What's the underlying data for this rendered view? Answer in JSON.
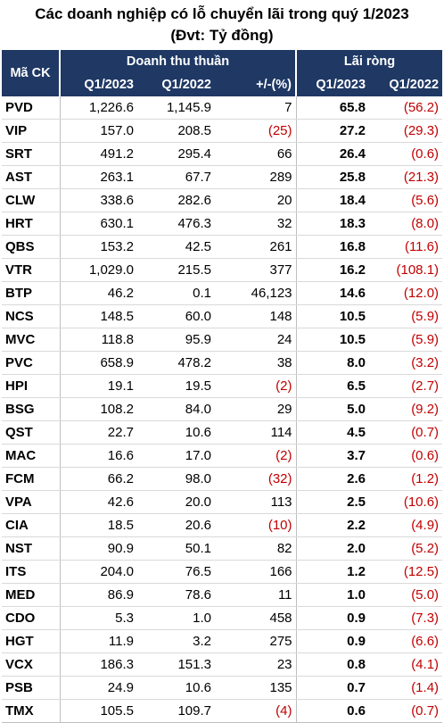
{
  "title": "Các doanh nghiệp có lỗ chuyển lãi trong quý 1/2023",
  "subtitle": "(Đvt: Tỷ đồng)",
  "header": {
    "code": "Mã CK",
    "revenue_group": "Doanh thu thuần",
    "profit_group": "Lãi ròng",
    "rev_q1_2023": "Q1/2023",
    "rev_q1_2022": "Q1/2022",
    "change": "+/-(%)",
    "np_q1_2023": "Q1/2023",
    "np_q1_2022": "Q1/2022"
  },
  "rows": [
    {
      "code": "PVD",
      "r23": "1,226.6",
      "r22": "1,145.9",
      "chg": "7",
      "n23": "65.8",
      "n22": "(56.2)"
    },
    {
      "code": "VIP",
      "r23": "157.0",
      "r22": "208.5",
      "chg": "(25)",
      "n23": "27.2",
      "n22": "(29.3)"
    },
    {
      "code": "SRT",
      "r23": "491.2",
      "r22": "295.4",
      "chg": "66",
      "n23": "26.4",
      "n22": "(0.6)"
    },
    {
      "code": "AST",
      "r23": "263.1",
      "r22": "67.7",
      "chg": "289",
      "n23": "25.8",
      "n22": "(21.3)"
    },
    {
      "code": "CLW",
      "r23": "338.6",
      "r22": "282.6",
      "chg": "20",
      "n23": "18.4",
      "n22": "(5.6)"
    },
    {
      "code": "HRT",
      "r23": "630.1",
      "r22": "476.3",
      "chg": "32",
      "n23": "18.3",
      "n22": "(8.0)"
    },
    {
      "code": "QBS",
      "r23": "153.2",
      "r22": "42.5",
      "chg": "261",
      "n23": "16.8",
      "n22": "(11.6)"
    },
    {
      "code": "VTR",
      "r23": "1,029.0",
      "r22": "215.5",
      "chg": "377",
      "n23": "16.2",
      "n22": "(108.1)"
    },
    {
      "code": "BTP",
      "r23": "46.2",
      "r22": "0.1",
      "chg": "46,123",
      "n23": "14.6",
      "n22": "(12.0)"
    },
    {
      "code": "NCS",
      "r23": "148.5",
      "r22": "60.0",
      "chg": "148",
      "n23": "10.5",
      "n22": "(5.9)"
    },
    {
      "code": "MVC",
      "r23": "118.8",
      "r22": "95.9",
      "chg": "24",
      "n23": "10.5",
      "n22": "(5.9)"
    },
    {
      "code": "PVC",
      "r23": "658.9",
      "r22": "478.2",
      "chg": "38",
      "n23": "8.0",
      "n22": "(3.2)"
    },
    {
      "code": "HPI",
      "r23": "19.1",
      "r22": "19.5",
      "chg": "(2)",
      "n23": "6.5",
      "n22": "(2.7)"
    },
    {
      "code": "BSG",
      "r23": "108.2",
      "r22": "84.0",
      "chg": "29",
      "n23": "5.0",
      "n22": "(9.2)"
    },
    {
      "code": "QST",
      "r23": "22.7",
      "r22": "10.6",
      "chg": "114",
      "n23": "4.5",
      "n22": "(0.7)"
    },
    {
      "code": "MAC",
      "r23": "16.6",
      "r22": "17.0",
      "chg": "(2)",
      "n23": "3.7",
      "n22": "(0.6)"
    },
    {
      "code": "FCM",
      "r23": "66.2",
      "r22": "98.0",
      "chg": "(32)",
      "n23": "2.6",
      "n22": "(1.2)"
    },
    {
      "code": "VPA",
      "r23": "42.6",
      "r22": "20.0",
      "chg": "113",
      "n23": "2.5",
      "n22": "(10.6)"
    },
    {
      "code": "CIA",
      "r23": "18.5",
      "r22": "20.6",
      "chg": "(10)",
      "n23": "2.2",
      "n22": "(4.9)"
    },
    {
      "code": "NST",
      "r23": "90.9",
      "r22": "50.1",
      "chg": "82",
      "n23": "2.0",
      "n22": "(5.2)"
    },
    {
      "code": "ITS",
      "r23": "204.0",
      "r22": "76.5",
      "chg": "166",
      "n23": "1.2",
      "n22": "(12.5)"
    },
    {
      "code": "MED",
      "r23": "86.9",
      "r22": "78.6",
      "chg": "11",
      "n23": "1.0",
      "n22": "(5.0)"
    },
    {
      "code": "CDO",
      "r23": "5.3",
      "r22": "1.0",
      "chg": "458",
      "n23": "0.9",
      "n22": "(7.3)"
    },
    {
      "code": "HGT",
      "r23": "11.9",
      "r22": "3.2",
      "chg": "275",
      "n23": "0.9",
      "n22": "(6.6)"
    },
    {
      "code": "VCX",
      "r23": "186.3",
      "r22": "151.3",
      "chg": "23",
      "n23": "0.8",
      "n22": "(4.1)"
    },
    {
      "code": "PSB",
      "r23": "24.9",
      "r22": "10.6",
      "chg": "135",
      "n23": "0.7",
      "n22": "(1.4)"
    },
    {
      "code": "TMX",
      "r23": "105.5",
      "r22": "109.7",
      "chg": "(4)",
      "n23": "0.6",
      "n22": "(0.7)"
    }
  ],
  "colors": {
    "header_bg": "#1f3864",
    "negative": "#c00000"
  }
}
